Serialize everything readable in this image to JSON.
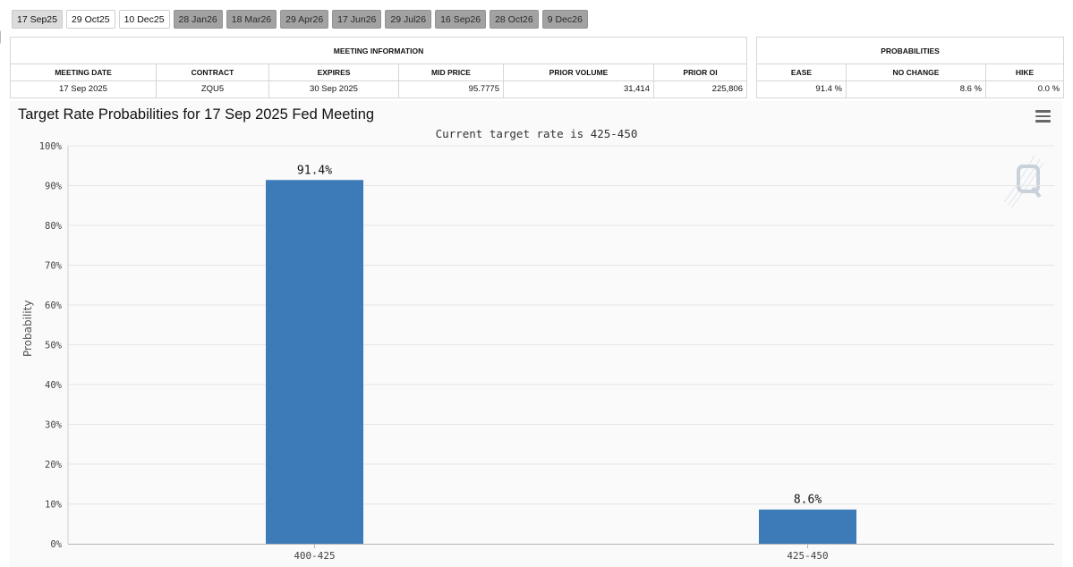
{
  "tabs": [
    {
      "label": "17 Sep25",
      "style": "selected"
    },
    {
      "label": "29 Oct25",
      "style": "light"
    },
    {
      "label": "10 Dec25",
      "style": "light"
    },
    {
      "label": "28 Jan26",
      "style": "dark"
    },
    {
      "label": "18 Mar26",
      "style": "dark"
    },
    {
      "label": "29 Apr26",
      "style": "dark"
    },
    {
      "label": "17 Jun26",
      "style": "dark"
    },
    {
      "label": "29 Jul26",
      "style": "dark"
    },
    {
      "label": "16 Sep26",
      "style": "dark"
    },
    {
      "label": "28 Oct26",
      "style": "dark"
    },
    {
      "label": "9 Dec26",
      "style": "dark"
    }
  ],
  "meeting_info": {
    "title": "MEETING INFORMATION",
    "headers": [
      "MEETING DATE",
      "CONTRACT",
      "EXPIRES",
      "MID PRICE",
      "PRIOR VOLUME",
      "PRIOR OI"
    ],
    "row": [
      "17 Sep 2025",
      "ZQU5",
      "30 Sep 2025",
      "95.7775",
      "31,414",
      "225,806"
    ]
  },
  "probabilities": {
    "title": "PROBABILITIES",
    "headers": [
      "EASE",
      "NO CHANGE",
      "HIKE"
    ],
    "row": [
      "91.4 %",
      "8.6 %",
      "0.0 %"
    ]
  },
  "chart": {
    "title": "Target Rate Probabilities for 17 Sep 2025 Fed Meeting",
    "subtitle": "Current target rate is 425-450",
    "menu_icon": "hamburger-menu-icon",
    "watermark_icon": "quikstrike-q-logo-icon"
  },
  "chart_data": {
    "type": "bar",
    "title": "Target Rate Probabilities for 17 Sep 2025 Fed Meeting",
    "subtitle": "Current target rate is 425-450",
    "ylabel": "Probability",
    "categories": [
      "400-425",
      "425-450"
    ],
    "values": [
      91.4,
      8.6
    ],
    "data_labels": [
      "91.4%",
      "8.6%"
    ],
    "ylim": [
      0,
      100
    ],
    "yticks": [
      "0%",
      "10%",
      "20%",
      "30%",
      "40%",
      "50%",
      "60%",
      "70%",
      "80%",
      "90%",
      "100%"
    ],
    "grid": true,
    "bar_color": "#3d7ab8"
  }
}
